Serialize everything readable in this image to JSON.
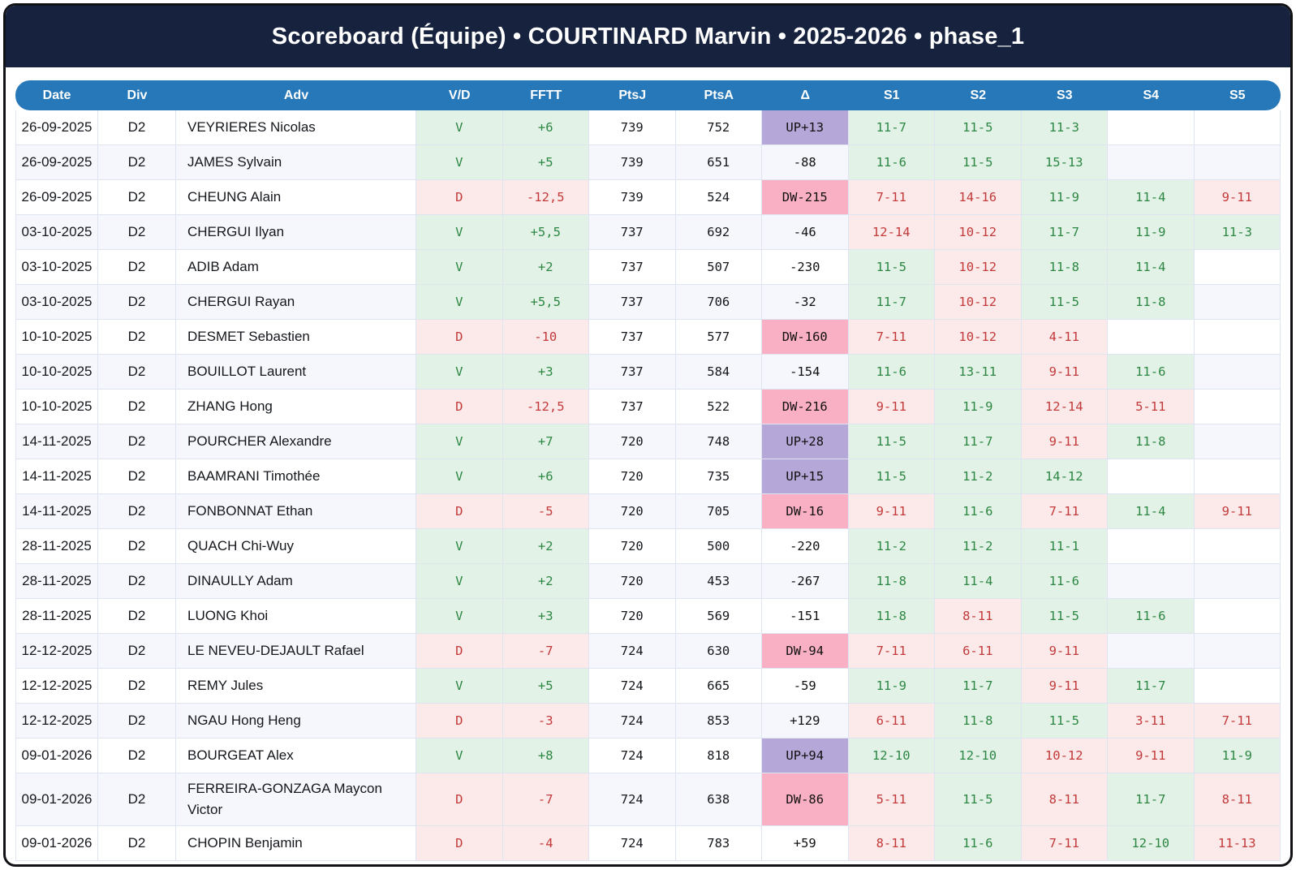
{
  "title": "Scoreboard (Équipe) • COURTINARD Marvin • 2025-2026 • phase_1",
  "colors": {
    "navy": "#17233e",
    "accent": "#2778b9",
    "win_bg": "#e2f2e7",
    "win_text": "#2d8743",
    "loss_bg": "#fce9e9",
    "loss_text": "#c23a3a",
    "promo_bg": "#b6a7d9",
    "relegation_bg": "#fab0c4",
    "stripe_bg": "#f5f7fc",
    "grid": "#dfe5f0"
  },
  "table": {
    "columns": [
      {
        "key": "date",
        "label": "Date"
      },
      {
        "key": "div",
        "label": "Div"
      },
      {
        "key": "adv",
        "label": "Adv"
      },
      {
        "key": "vd",
        "label": "V/D"
      },
      {
        "key": "fftt",
        "label": "FFTT"
      },
      {
        "key": "ptsj",
        "label": "PtsJ"
      },
      {
        "key": "ptsa",
        "label": "PtsA"
      },
      {
        "key": "delta",
        "label": "Δ"
      },
      {
        "key": "s1",
        "label": "S1"
      },
      {
        "key": "s2",
        "label": "S2"
      },
      {
        "key": "s3",
        "label": "S3"
      },
      {
        "key": "s4",
        "label": "S4"
      },
      {
        "key": "s5",
        "label": "S5"
      }
    ],
    "rows": [
      {
        "date": "26-09-2025",
        "div": "D2",
        "adv": "VEYRIERES Nicolas",
        "result": "V",
        "fftt": "+6",
        "pts_j": "739",
        "pts_a": "752",
        "delta": "UP+13",
        "delta_kind": "up",
        "sets": [
          {
            "score": "11-7",
            "won": true
          },
          {
            "score": "11-5",
            "won": true
          },
          {
            "score": "11-3",
            "won": true
          },
          null,
          null
        ]
      },
      {
        "date": "26-09-2025",
        "div": "D2",
        "adv": "JAMES Sylvain",
        "result": "V",
        "fftt": "+5",
        "pts_j": "739",
        "pts_a": "651",
        "delta": "-88",
        "delta_kind": "plain",
        "sets": [
          {
            "score": "11-6",
            "won": true
          },
          {
            "score": "11-5",
            "won": true
          },
          {
            "score": "15-13",
            "won": true
          },
          null,
          null
        ]
      },
      {
        "date": "26-09-2025",
        "div": "D2",
        "adv": "CHEUNG Alain",
        "result": "D",
        "fftt": "-12,5",
        "pts_j": "739",
        "pts_a": "524",
        "delta": "DW-215",
        "delta_kind": "down",
        "sets": [
          {
            "score": "7-11",
            "won": false
          },
          {
            "score": "14-16",
            "won": false
          },
          {
            "score": "11-9",
            "won": true
          },
          {
            "score": "11-4",
            "won": true
          },
          {
            "score": "9-11",
            "won": false
          }
        ]
      },
      {
        "date": "03-10-2025",
        "div": "D2",
        "adv": "CHERGUI Ilyan",
        "result": "V",
        "fftt": "+5,5",
        "pts_j": "737",
        "pts_a": "692",
        "delta": "-46",
        "delta_kind": "plain",
        "sets": [
          {
            "score": "12-14",
            "won": false
          },
          {
            "score": "10-12",
            "won": false
          },
          {
            "score": "11-7",
            "won": true
          },
          {
            "score": "11-9",
            "won": true
          },
          {
            "score": "11-3",
            "won": true
          }
        ]
      },
      {
        "date": "03-10-2025",
        "div": "D2",
        "adv": "ADIB Adam",
        "result": "V",
        "fftt": "+2",
        "pts_j": "737",
        "pts_a": "507",
        "delta": "-230",
        "delta_kind": "plain",
        "sets": [
          {
            "score": "11-5",
            "won": true
          },
          {
            "score": "10-12",
            "won": false
          },
          {
            "score": "11-8",
            "won": true
          },
          {
            "score": "11-4",
            "won": true
          },
          null
        ]
      },
      {
        "date": "03-10-2025",
        "div": "D2",
        "adv": "CHERGUI Rayan",
        "result": "V",
        "fftt": "+5,5",
        "pts_j": "737",
        "pts_a": "706",
        "delta": "-32",
        "delta_kind": "plain",
        "sets": [
          {
            "score": "11-7",
            "won": true
          },
          {
            "score": "10-12",
            "won": false
          },
          {
            "score": "11-5",
            "won": true
          },
          {
            "score": "11-8",
            "won": true
          },
          null
        ]
      },
      {
        "date": "10-10-2025",
        "div": "D2",
        "adv": "DESMET Sebastien",
        "result": "D",
        "fftt": "-10",
        "pts_j": "737",
        "pts_a": "577",
        "delta": "DW-160",
        "delta_kind": "down",
        "sets": [
          {
            "score": "7-11",
            "won": false
          },
          {
            "score": "10-12",
            "won": false
          },
          {
            "score": "4-11",
            "won": false
          },
          null,
          null
        ]
      },
      {
        "date": "10-10-2025",
        "div": "D2",
        "adv": "BOUILLOT Laurent",
        "result": "V",
        "fftt": "+3",
        "pts_j": "737",
        "pts_a": "584",
        "delta": "-154",
        "delta_kind": "plain",
        "sets": [
          {
            "score": "11-6",
            "won": true
          },
          {
            "score": "13-11",
            "won": true
          },
          {
            "score": "9-11",
            "won": false
          },
          {
            "score": "11-6",
            "won": true
          },
          null
        ]
      },
      {
        "date": "10-10-2025",
        "div": "D2",
        "adv": "ZHANG Hong",
        "result": "D",
        "fftt": "-12,5",
        "pts_j": "737",
        "pts_a": "522",
        "delta": "DW-216",
        "delta_kind": "down",
        "sets": [
          {
            "score": "9-11",
            "won": false
          },
          {
            "score": "11-9",
            "won": true
          },
          {
            "score": "12-14",
            "won": false
          },
          {
            "score": "5-11",
            "won": false
          },
          null
        ]
      },
      {
        "date": "14-11-2025",
        "div": "D2",
        "adv": "POURCHER Alexandre",
        "result": "V",
        "fftt": "+7",
        "pts_j": "720",
        "pts_a": "748",
        "delta": "UP+28",
        "delta_kind": "up",
        "sets": [
          {
            "score": "11-5",
            "won": true
          },
          {
            "score": "11-7",
            "won": true
          },
          {
            "score": "9-11",
            "won": false
          },
          {
            "score": "11-8",
            "won": true
          },
          null
        ]
      },
      {
        "date": "14-11-2025",
        "div": "D2",
        "adv": "BAAMRANI Timothée",
        "result": "V",
        "fftt": "+6",
        "pts_j": "720",
        "pts_a": "735",
        "delta": "UP+15",
        "delta_kind": "up",
        "sets": [
          {
            "score": "11-5",
            "won": true
          },
          {
            "score": "11-2",
            "won": true
          },
          {
            "score": "14-12",
            "won": true
          },
          null,
          null
        ]
      },
      {
        "date": "14-11-2025",
        "div": "D2",
        "adv": "FONBONNAT Ethan",
        "result": "D",
        "fftt": "-5",
        "pts_j": "720",
        "pts_a": "705",
        "delta": "DW-16",
        "delta_kind": "down",
        "sets": [
          {
            "score": "9-11",
            "won": false
          },
          {
            "score": "11-6",
            "won": true
          },
          {
            "score": "7-11",
            "won": false
          },
          {
            "score": "11-4",
            "won": true
          },
          {
            "score": "9-11",
            "won": false
          }
        ]
      },
      {
        "date": "28-11-2025",
        "div": "D2",
        "adv": "QUACH Chi-Wuy",
        "result": "V",
        "fftt": "+2",
        "pts_j": "720",
        "pts_a": "500",
        "delta": "-220",
        "delta_kind": "plain",
        "sets": [
          {
            "score": "11-2",
            "won": true
          },
          {
            "score": "11-2",
            "won": true
          },
          {
            "score": "11-1",
            "won": true
          },
          null,
          null
        ]
      },
      {
        "date": "28-11-2025",
        "div": "D2",
        "adv": "DINAULLY Adam",
        "result": "V",
        "fftt": "+2",
        "pts_j": "720",
        "pts_a": "453",
        "delta": "-267",
        "delta_kind": "plain",
        "sets": [
          {
            "score": "11-8",
            "won": true
          },
          {
            "score": "11-4",
            "won": true
          },
          {
            "score": "11-6",
            "won": true
          },
          null,
          null
        ]
      },
      {
        "date": "28-11-2025",
        "div": "D2",
        "adv": "LUONG Khoi",
        "result": "V",
        "fftt": "+3",
        "pts_j": "720",
        "pts_a": "569",
        "delta": "-151",
        "delta_kind": "plain",
        "sets": [
          {
            "score": "11-8",
            "won": true
          },
          {
            "score": "8-11",
            "won": false
          },
          {
            "score": "11-5",
            "won": true
          },
          {
            "score": "11-6",
            "won": true
          },
          null
        ]
      },
      {
        "date": "12-12-2025",
        "div": "D2",
        "adv": "LE NEVEU-DEJAULT Rafael",
        "result": "D",
        "fftt": "-7",
        "pts_j": "724",
        "pts_a": "630",
        "delta": "DW-94",
        "delta_kind": "down",
        "sets": [
          {
            "score": "7-11",
            "won": false
          },
          {
            "score": "6-11",
            "won": false
          },
          {
            "score": "9-11",
            "won": false
          },
          null,
          null
        ]
      },
      {
        "date": "12-12-2025",
        "div": "D2",
        "adv": "REMY Jules",
        "result": "V",
        "fftt": "+5",
        "pts_j": "724",
        "pts_a": "665",
        "delta": "-59",
        "delta_kind": "plain",
        "sets": [
          {
            "score": "11-9",
            "won": true
          },
          {
            "score": "11-7",
            "won": true
          },
          {
            "score": "9-11",
            "won": false
          },
          {
            "score": "11-7",
            "won": true
          },
          null
        ]
      },
      {
        "date": "12-12-2025",
        "div": "D2",
        "adv": "NGAU Hong Heng",
        "result": "D",
        "fftt": "-3",
        "pts_j": "724",
        "pts_a": "853",
        "delta": "+129",
        "delta_kind": "plain",
        "sets": [
          {
            "score": "6-11",
            "won": false
          },
          {
            "score": "11-8",
            "won": true
          },
          {
            "score": "11-5",
            "won": true
          },
          {
            "score": "3-11",
            "won": false
          },
          {
            "score": "7-11",
            "won": false
          }
        ]
      },
      {
        "date": "09-01-2026",
        "div": "D2",
        "adv": "BOURGEAT Alex",
        "result": "V",
        "fftt": "+8",
        "pts_j": "724",
        "pts_a": "818",
        "delta": "UP+94",
        "delta_kind": "up",
        "sets": [
          {
            "score": "12-10",
            "won": true
          },
          {
            "score": "12-10",
            "won": true
          },
          {
            "score": "10-12",
            "won": false
          },
          {
            "score": "9-11",
            "won": false
          },
          {
            "score": "11-9",
            "won": true
          }
        ]
      },
      {
        "date": "09-01-2026",
        "div": "D2",
        "adv": "FERREIRA-GONZAGA Maycon Victor",
        "result": "D",
        "fftt": "-7",
        "pts_j": "724",
        "pts_a": "638",
        "delta": "DW-86",
        "delta_kind": "down",
        "sets": [
          {
            "score": "5-11",
            "won": false
          },
          {
            "score": "11-5",
            "won": true
          },
          {
            "score": "8-11",
            "won": false
          },
          {
            "score": "11-7",
            "won": true
          },
          {
            "score": "8-11",
            "won": false
          }
        ]
      },
      {
        "date": "09-01-2026",
        "div": "D2",
        "adv": "CHOPIN Benjamin",
        "result": "D",
        "fftt": "-4",
        "pts_j": "724",
        "pts_a": "783",
        "delta": "+59",
        "delta_kind": "plain",
        "sets": [
          {
            "score": "8-11",
            "won": false
          },
          {
            "score": "11-6",
            "won": true
          },
          {
            "score": "7-11",
            "won": false
          },
          {
            "score": "12-10",
            "won": true
          },
          {
            "score": "11-13",
            "won": false
          }
        ]
      }
    ]
  }
}
